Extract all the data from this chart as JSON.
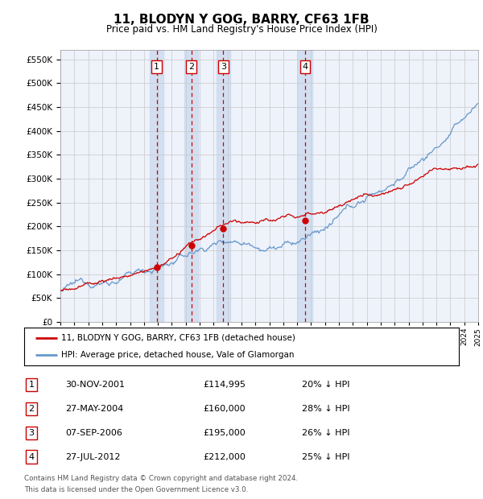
{
  "title": "11, BLODYN Y GOG, BARRY, CF63 1FB",
  "subtitle": "Price paid vs. HM Land Registry's House Price Index (HPI)",
  "yticks": [
    0,
    50000,
    100000,
    150000,
    200000,
    250000,
    300000,
    350000,
    400000,
    450000,
    500000,
    550000
  ],
  "xstart_year": 1995,
  "xend_year": 2025,
  "sale_color": "#cc0000",
  "hpi_color": "#6699cc",
  "sale_label": "11, BLODYN Y GOG, BARRY, CF63 1FB (detached house)",
  "hpi_label": "HPI: Average price, detached house, Vale of Glamorgan",
  "transactions": [
    {
      "id": 1,
      "date": "30-NOV-2001",
      "price": 114995,
      "pct": "20%",
      "dir": "↓",
      "year": 2001.92
    },
    {
      "id": 2,
      "date": "27-MAY-2004",
      "price": 160000,
      "pct": "28%",
      "dir": "↓",
      "year": 2004.41
    },
    {
      "id": 3,
      "date": "07-SEP-2006",
      "price": 195000,
      "pct": "26%",
      "dir": "↓",
      "year": 2006.69
    },
    {
      "id": 4,
      "date": "27-JUL-2012",
      "price": 212000,
      "pct": "25%",
      "dir": "↓",
      "year": 2012.58
    }
  ],
  "footer_line1": "Contains HM Land Registry data © Crown copyright and database right 2024.",
  "footer_line2": "This data is licensed under the Open Government Licence v3.0.",
  "bg_color": "#ffffff",
  "plot_bg": "#eef2fa",
  "grid_color": "#c8c8c8",
  "vline_color": "#cc0000",
  "shade_color": "#c8d8ee",
  "ylim_max": 570000
}
